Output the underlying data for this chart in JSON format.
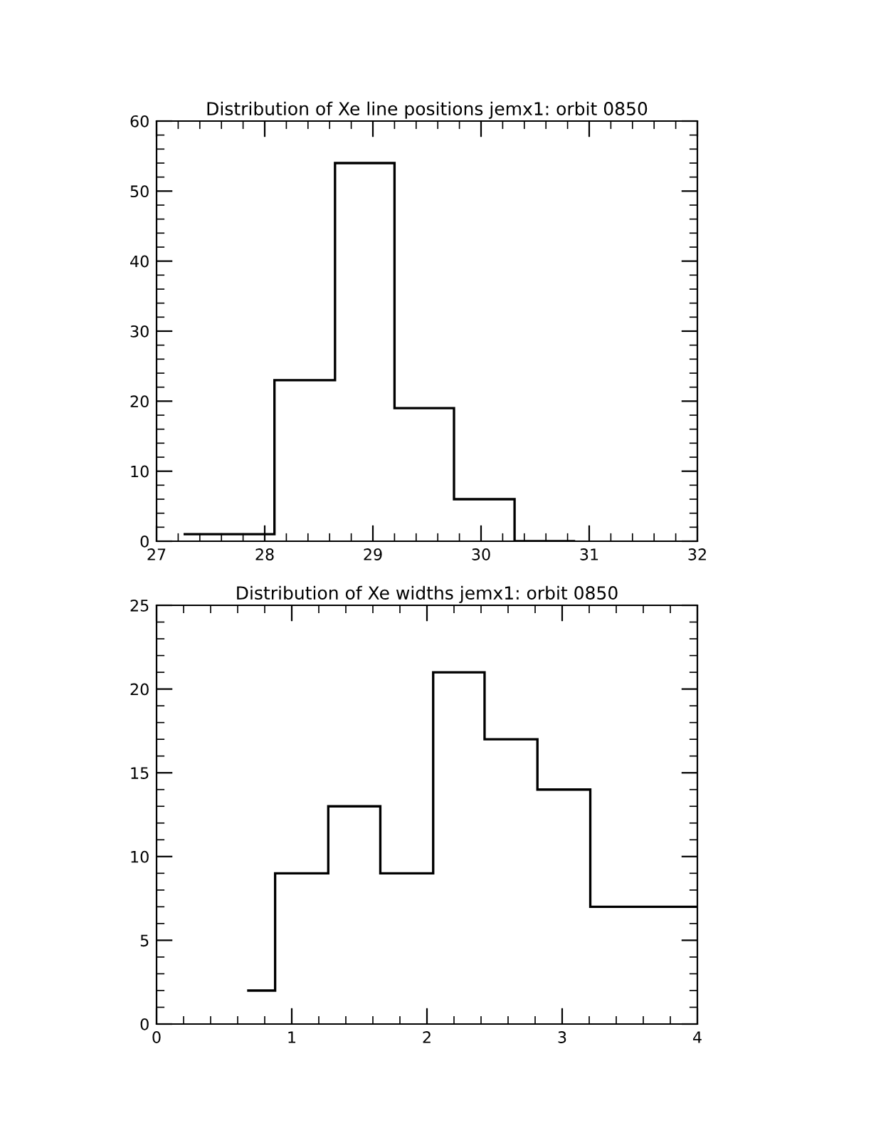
{
  "chart_data": [
    {
      "type": "histogram",
      "title": "Distribution of Xe line positions jemx1: orbit 0850",
      "bins": [
        27.25,
        28.09,
        28.65,
        29.2,
        29.75,
        30.31,
        30.87
      ],
      "values": [
        1,
        23,
        54,
        19,
        6,
        0
      ],
      "color": "#000000",
      "xlim": [
        27,
        32
      ],
      "xticks": [
        27,
        28,
        29,
        30,
        31,
        32
      ],
      "ylim": [
        0,
        60
      ],
      "yticks": [
        0,
        10,
        20,
        30,
        40,
        50,
        60
      ],
      "grid": false
    },
    {
      "type": "histogram",
      "title": "Distribution of Xe widths jemx1: orbit 0850",
      "bins": [
        0.67,
        0.877,
        1.27,
        1.655,
        2.046,
        2.426,
        2.817,
        3.208,
        3.6,
        4.0
      ],
      "values": [
        2,
        9,
        13,
        9,
        21,
        17,
        14,
        7,
        7
      ],
      "color": "#000000",
      "xlim": [
        0,
        4
      ],
      "xticks": [
        0,
        1,
        2,
        3,
        4
      ],
      "ylim": [
        0,
        25
      ],
      "yticks": [
        0,
        5,
        10,
        15,
        20,
        25
      ],
      "grid": false
    }
  ]
}
